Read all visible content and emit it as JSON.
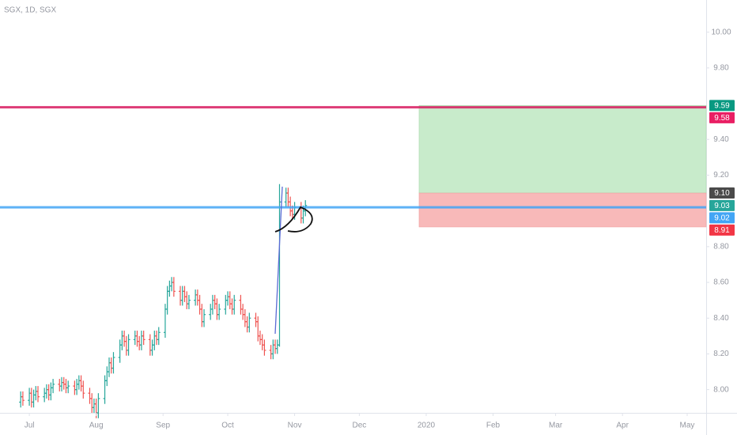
{
  "chart_data": {
    "type": "ohlc",
    "title": "SGX, 1D, SGX",
    "up_color": "#26a69a",
    "down_color": "#ef5350",
    "xlim": [
      168.4,
      495.8
    ],
    "xticks": [
      {
        "value": 182,
        "label": "Jul"
      },
      {
        "value": 213,
        "label": "Aug"
      },
      {
        "value": 244,
        "label": "Sep"
      },
      {
        "value": 274,
        "label": "Oct"
      },
      {
        "value": 305,
        "label": "Nov"
      },
      {
        "value": 335,
        "label": "Dec"
      },
      {
        "value": 366,
        "label": "2020"
      },
      {
        "value": 397,
        "label": "Feb"
      },
      {
        "value": 426,
        "label": "Mar"
      },
      {
        "value": 457,
        "label": "Apr"
      },
      {
        "value": 487,
        "label": "May"
      }
    ],
    "ylim": [
      7.87,
      10.18
    ],
    "yticks": [
      {
        "value": 10,
        "label": "10.00"
      },
      {
        "value": 9.8,
        "label": "9.80"
      },
      {
        "value": 9.4,
        "label": "9.40"
      },
      {
        "value": 9.2,
        "label": "9.20"
      },
      {
        "value": 8.8,
        "label": "8.80"
      },
      {
        "value": 8.6,
        "label": "8.60"
      },
      {
        "value": 8.4,
        "label": "8.40"
      },
      {
        "value": 8.2,
        "label": "8.20"
      },
      {
        "value": 8,
        "label": "8.00"
      }
    ],
    "bars": [
      [
        178,
        7.93,
        7.99,
        7.9,
        7.96
      ],
      [
        179,
        7.96,
        7.99,
        7.91,
        7.94
      ],
      [
        182,
        7.94,
        8.01,
        7.91,
        7.98
      ],
      [
        183,
        7.98,
        8.01,
        7.9,
        7.93
      ],
      [
        184,
        7.93,
        8.0,
        7.9,
        7.97
      ],
      [
        185,
        7.97,
        8.02,
        7.94,
        7.99
      ],
      [
        186,
        7.99,
        8.02,
        7.93,
        7.96
      ],
      [
        189,
        7.96,
        8.01,
        7.93,
        7.98
      ],
      [
        190,
        7.98,
        8.03,
        7.95,
        8.0
      ],
      [
        191,
        8.0,
        8.03,
        7.94,
        7.97
      ],
      [
        192,
        7.97,
        8.04,
        7.94,
        8.01
      ],
      [
        193,
        8.01,
        8.06,
        7.98,
        8.03
      ],
      [
        196,
        8.03,
        8.06,
        7.99,
        8.02
      ],
      [
        197,
        8.02,
        8.07,
        7.99,
        8.04
      ],
      [
        198,
        8.04,
        8.07,
        8.0,
        8.03
      ],
      [
        199,
        8.03,
        8.06,
        7.98,
        8.01
      ],
      [
        200,
        8.01,
        8.05,
        7.98,
        8.02
      ],
      [
        203,
        8.02,
        8.05,
        7.97,
        8.0
      ],
      [
        204,
        8.0,
        8.06,
        7.97,
        8.03
      ],
      [
        205,
        8.03,
        8.08,
        8.0,
        8.05
      ],
      [
        206,
        8.05,
        8.08,
        7.99,
        8.02
      ],
      [
        207,
        8.02,
        8.05,
        7.95,
        7.98
      ],
      [
        210,
        7.98,
        8.01,
        7.92,
        7.95
      ],
      [
        211,
        7.95,
        7.98,
        7.87,
        7.9
      ],
      [
        212,
        7.9,
        7.95,
        7.87,
        7.92
      ],
      [
        213,
        7.92,
        7.95,
        7.84,
        7.87
      ],
      [
        214,
        7.87,
        7.98,
        7.84,
        7.95
      ],
      [
        217,
        7.95,
        8.08,
        7.92,
        8.05
      ],
      [
        218,
        8.05,
        8.13,
        8.02,
        8.1
      ],
      [
        219,
        8.1,
        8.18,
        8.07,
        8.15
      ],
      [
        220,
        8.15,
        8.18,
        8.09,
        8.12
      ],
      [
        221,
        8.12,
        8.21,
        8.09,
        8.18
      ],
      [
        224,
        8.18,
        8.28,
        8.15,
        8.25
      ],
      [
        225,
        8.25,
        8.33,
        8.22,
        8.3
      ],
      [
        226,
        8.3,
        8.33,
        8.24,
        8.27
      ],
      [
        227,
        8.27,
        8.3,
        8.19,
        8.22
      ],
      [
        228,
        8.22,
        8.31,
        8.19,
        8.28
      ],
      [
        231,
        8.28,
        8.33,
        8.25,
        8.3
      ],
      [
        232,
        8.3,
        8.33,
        8.24,
        8.27
      ],
      [
        233,
        8.27,
        8.3,
        8.22,
        8.25
      ],
      [
        234,
        8.25,
        8.33,
        8.22,
        8.3
      ],
      [
        235,
        8.3,
        8.33,
        8.25,
        8.28
      ],
      [
        238,
        8.28,
        8.31,
        8.19,
        8.22
      ],
      [
        239,
        8.22,
        8.28,
        8.19,
        8.25
      ],
      [
        240,
        8.25,
        8.33,
        8.22,
        8.3
      ],
      [
        241,
        8.3,
        8.33,
        8.25,
        8.28
      ],
      [
        242,
        8.28,
        8.35,
        8.25,
        8.32
      ],
      [
        245,
        8.32,
        8.48,
        8.29,
        8.45
      ],
      [
        246,
        8.45,
        8.58,
        8.42,
        8.55
      ],
      [
        247,
        8.55,
        8.61,
        8.52,
        8.58
      ],
      [
        248,
        8.58,
        8.63,
        8.55,
        8.6
      ],
      [
        249,
        8.6,
        8.63,
        8.52,
        8.55
      ],
      [
        252,
        8.55,
        8.58,
        8.47,
        8.5
      ],
      [
        253,
        8.5,
        8.58,
        8.47,
        8.55
      ],
      [
        254,
        8.55,
        8.58,
        8.49,
        8.52
      ],
      [
        255,
        8.52,
        8.55,
        8.45,
        8.48
      ],
      [
        256,
        8.48,
        8.53,
        8.45,
        8.5
      ],
      [
        259,
        8.5,
        8.56,
        8.47,
        8.53
      ],
      [
        260,
        8.53,
        8.56,
        8.47,
        8.5
      ],
      [
        261,
        8.5,
        8.53,
        8.42,
        8.45
      ],
      [
        262,
        8.45,
        8.48,
        8.35,
        8.38
      ],
      [
        263,
        8.38,
        8.45,
        8.35,
        8.42
      ],
      [
        266,
        8.42,
        8.48,
        8.39,
        8.45
      ],
      [
        267,
        8.45,
        8.53,
        8.42,
        8.5
      ],
      [
        268,
        8.5,
        8.53,
        8.45,
        8.48
      ],
      [
        269,
        8.48,
        8.51,
        8.39,
        8.42
      ],
      [
        270,
        8.42,
        8.48,
        8.39,
        8.45
      ],
      [
        273,
        8.45,
        8.53,
        8.42,
        8.5
      ],
      [
        274,
        8.5,
        8.55,
        8.47,
        8.52
      ],
      [
        275,
        8.52,
        8.55,
        8.45,
        8.48
      ],
      [
        276,
        8.48,
        8.51,
        8.42,
        8.45
      ],
      [
        277,
        8.45,
        8.53,
        8.42,
        8.5
      ],
      [
        280,
        8.5,
        8.53,
        8.42,
        8.45
      ],
      [
        281,
        8.45,
        8.48,
        8.39,
        8.42
      ],
      [
        282,
        8.42,
        8.45,
        8.35,
        8.38
      ],
      [
        283,
        8.38,
        8.41,
        8.32,
        8.35
      ],
      [
        284,
        8.35,
        8.43,
        8.32,
        8.4
      ],
      [
        287,
        8.4,
        8.43,
        8.35,
        8.38
      ],
      [
        288,
        8.38,
        8.41,
        8.27,
        8.3
      ],
      [
        289,
        8.3,
        8.33,
        8.25,
        8.28
      ],
      [
        290,
        8.28,
        8.31,
        8.22,
        8.25
      ],
      [
        291,
        8.25,
        8.28,
        8.19,
        8.22
      ],
      [
        294,
        8.22,
        8.25,
        8.17,
        8.2
      ],
      [
        295,
        8.2,
        8.28,
        8.17,
        8.25
      ],
      [
        296,
        8.25,
        8.28,
        8.2,
        8.23
      ],
      [
        297,
        8.23,
        8.28,
        8.2,
        8.25
      ],
      [
        298,
        8.25,
        9.15,
        8.24,
        9.05
      ],
      [
        301,
        9.05,
        9.13,
        9.02,
        9.1
      ],
      [
        302,
        9.1,
        9.13,
        9.02,
        9.05
      ],
      [
        303,
        9.05,
        9.08,
        8.97,
        9.0
      ],
      [
        304,
        9.0,
        9.03,
        8.95,
        8.98
      ],
      [
        305,
        8.98,
        9.05,
        8.95,
        9.02
      ],
      [
        308,
        9.02,
        9.05,
        8.93,
        8.96
      ],
      [
        309,
        8.96,
        9.03,
        8.93,
        9.0
      ],
      [
        310,
        9.0,
        9.06,
        8.97,
        9.03
      ]
    ],
    "lines": [
      {
        "value": 9.58,
        "color": "#d81b60"
      },
      {
        "value": 9.02,
        "color": "#42a5f5"
      }
    ],
    "position": {
      "start": 362.7,
      "entry": 9.1,
      "target": 9.59,
      "stop": 8.91,
      "profit_color": "#c8ebcb",
      "loss_color": "#f8b9b9"
    },
    "price_labels": [
      {
        "value": 9.59,
        "label": "9.59",
        "color": "#089981"
      },
      {
        "value": 9.58,
        "label": "9.58",
        "color": "#e91e63"
      },
      {
        "value": 9.1,
        "label": "9.10",
        "color": "#4a4a4a"
      },
      {
        "value": 9.03,
        "label": "9.03",
        "color": "#26a69a"
      },
      {
        "value": 9.02,
        "label": "9.02",
        "color": "#42a5f5"
      },
      {
        "value": 8.91,
        "label": "8.91",
        "color": "#f23645"
      }
    ]
  }
}
